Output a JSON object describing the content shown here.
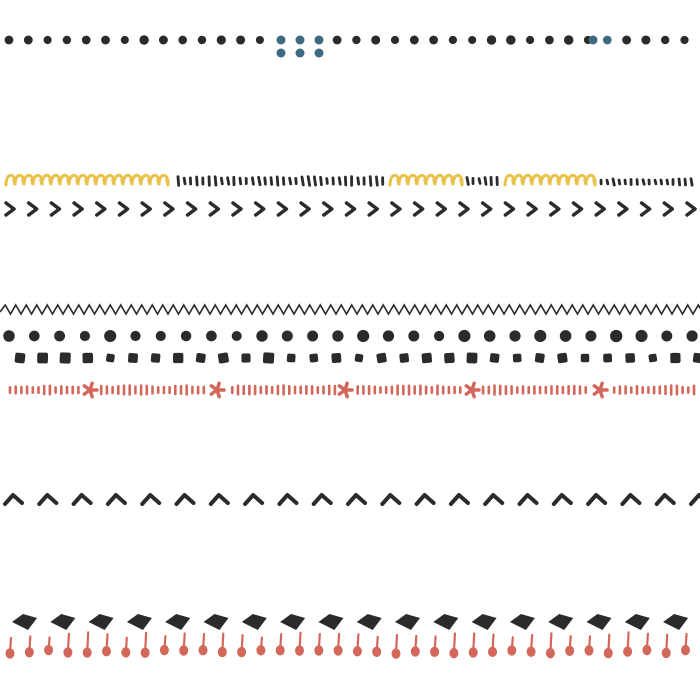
{
  "colors": {
    "background": "#ffffff",
    "ink": "#2b2b2b",
    "blue": "#3d6a80",
    "yellow": "#e8c24a",
    "red": "#d2675a"
  },
  "rows": [
    {
      "pattern": "dots-with-blue-cluster"
    },
    {
      "pattern": "yellow-loops-and-dashes"
    },
    {
      "pattern": "right-chevrons"
    },
    {
      "pattern": "zigzag"
    },
    {
      "pattern": "round-dots"
    },
    {
      "pattern": "square-dots"
    },
    {
      "pattern": "red-dashes-with-asterisks"
    },
    {
      "pattern": "up-chevrons"
    },
    {
      "pattern": "diamonds-with-drops"
    }
  ]
}
